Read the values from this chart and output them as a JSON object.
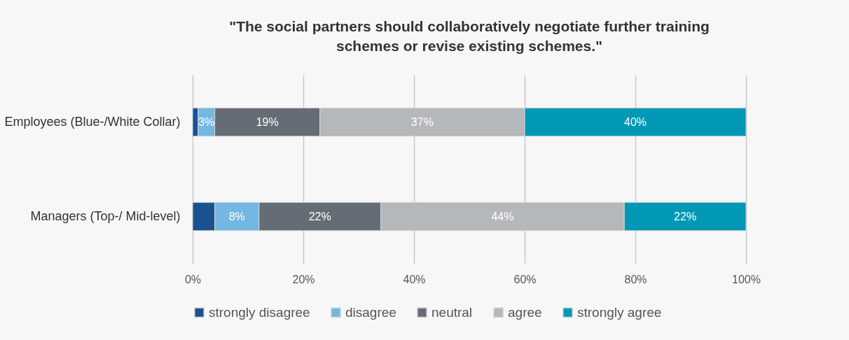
{
  "chart_data": {
    "type": "bar",
    "orientation": "horizontal",
    "stacked": true,
    "title": "\"The social partners should collaboratively negotiate further training schemes or revise existing schemes.\"",
    "categories": [
      "Employees (Blue-/White Collar)",
      "Managers (Top-/ Mid-level)"
    ],
    "series": [
      {
        "name": "strongly disagree",
        "color": "#1a5291",
        "values": [
          1,
          4
        ],
        "value_labels": [
          null,
          null
        ]
      },
      {
        "name": "disagree",
        "color": "#72b8e3",
        "values": [
          3,
          8
        ],
        "value_labels": [
          "3%",
          "8%"
        ]
      },
      {
        "name": "neutral",
        "color": "#666c75",
        "values": [
          19,
          22
        ],
        "value_labels": [
          "19%",
          "22%"
        ]
      },
      {
        "name": "agree",
        "color": "#b4b8bb",
        "values": [
          37,
          44
        ],
        "value_labels": [
          "37%",
          "44%"
        ]
      },
      {
        "name": "strongly agree",
        "color": "#0098b4",
        "values": [
          40,
          22
        ],
        "value_labels": [
          "40%",
          "22%"
        ]
      }
    ],
    "xlim": [
      0,
      100
    ],
    "xticks": [
      {
        "value": 0,
        "label": "0%"
      },
      {
        "value": 20,
        "label": "20%"
      },
      {
        "value": 40,
        "label": "40%"
      },
      {
        "value": 60,
        "label": "60%"
      },
      {
        "value": 80,
        "label": "80%"
      },
      {
        "value": 100,
        "label": "100%"
      }
    ],
    "grid": "x",
    "legend": "bottom"
  }
}
